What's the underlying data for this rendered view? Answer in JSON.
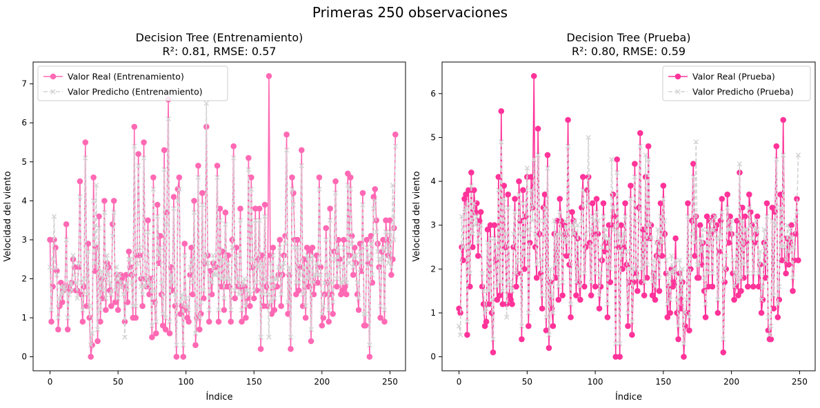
{
  "figure": {
    "suptitle": "Primeras 250 observaciones"
  },
  "chart_data": [
    {
      "type": "line",
      "title": "Decision Tree (Entrenamiento)",
      "subtitle": "R²: 0.81, RMSE: 0.57",
      "xlabel": "Índice",
      "ylabel": "Velocidad del viento",
      "xlim": [
        -12.45,
        261.45
      ],
      "ylim": [
        -0.36,
        7.56
      ],
      "xticks": [
        0,
        50,
        100,
        150,
        200,
        250
      ],
      "yticks": [
        0,
        1,
        2,
        3,
        4,
        5,
        6,
        7
      ],
      "legend": "top-left",
      "grid": false,
      "series": [
        {
          "name": "Valor Real (Entrenamiento)",
          "color": "#ff69b4",
          "style": "solid",
          "marker": "circle",
          "values": [
            3.0,
            0.9,
            1.8,
            3.0,
            2.8,
            2.2,
            0.7,
            1.3,
            1.9,
            1.4,
            1.7,
            1.8,
            3.4,
            0.7,
            1.8,
            1.7,
            1.9,
            2.5,
            2.3,
            1.7,
            1.7,
            2.3,
            4.5,
            1.6,
            0.9,
            1.8,
            5.5,
            1.3,
            2.9,
            1.0,
            0.0,
            0.3,
            4.6,
            2.2,
            2.8,
            0.4,
            3.6,
            0.9,
            2.0,
            1.5,
            4.0,
            1.2,
            2.4,
            2.3,
            1.7,
            1.3,
            3.4,
            4.0,
            1.4,
            2.1,
            1.2,
            1.9,
            2.1,
            2.0,
            1.8,
            0.9,
            2.1,
            1.4,
            2.7,
            2.3,
            2.1,
            1.0,
            5.9,
            1.0,
            2.6,
            5.2,
            2.6,
            2.0,
            1.3,
            5.5,
            2.0,
            1.8,
            3.5,
            1.6,
            2.0,
            0.5,
            4.6,
            1.4,
            0.6,
            3.9,
            2.4,
            3.1,
            1.6,
            0.8,
            5.3,
            0.7,
            3.7,
            6.6,
            0.6,
            2.3,
            1.7,
            4.1,
            1.3,
            0.0,
            4.3,
            4.6,
            1.1,
            1.3,
            0.0,
            2.9,
            1.2,
            1.0,
            0.9,
            2.1,
            2.8,
            1.6,
            4.0,
            0.3,
            1.0,
            4.9,
            0.7,
            1.1,
            4.2,
            1.5,
            2.4,
            5.9,
            2.6,
            0.9,
            2.2,
            1.6,
            2.4,
            2.3,
            2.3,
            4.9,
            0.9,
            3.8,
            1.8,
            2.7,
            1.2,
            3.7,
            1.8,
            2.6,
            1.8,
            0.9,
            3.0,
            5.4,
            1.5,
            2.8,
            1.8,
            1.8,
            3.8,
            0.9,
            1.7,
            1.8,
            1.0,
            1.5,
            5.1,
            1.3,
            4.6,
            2.3,
            1.5,
            3.8,
            1.7,
            2.5,
            3.8,
            0.2,
            2.6,
            1.3,
            3.9,
            1.8,
            1.3,
            7.2,
            2.6,
            1.1,
            2.8,
            1.2,
            1.8,
            1.8,
            2.1,
            3.0,
            1.3,
            2.1,
            2.6,
            3.1,
            5.7,
            1.1,
            2.1,
            0.2,
            4.6,
            4.2,
            3.0,
            1.6,
            3.0,
            1.7,
            2.3,
            5.3,
            1.3,
            2.5,
            1.0,
            2.8,
            1.8,
            2.7,
            0.4,
            2.8,
            1.6,
            1.9,
            2.6,
            1.9,
            4.6,
            2.3,
            0.8,
            1.0,
            1.6,
            3.3,
            1.9,
            0.9,
            3.8,
            1.6,
            1.1,
            2.7,
            4.5,
            1.8,
            3.0,
            2.5,
            1.6,
            1.7,
            3.0,
            1.8,
            1.6,
            4.7,
            2.6,
            4.6,
            3.1,
            2.1,
            2.8,
            2.4,
            1.6,
            1.2,
            2.9,
            2.2,
            4.2,
            0.8,
            0.8,
            3.0,
            2.4,
            0.0,
            3.1,
            1.9,
            4.1,
            4.3,
            3.5,
            2.9,
            2.3,
            1.0,
            2.7,
            3.0,
            0.9,
            3.5,
            3.0,
            2.6,
            3.5,
            2.1,
            2.5,
            3.3,
            5.7
          ]
        },
        {
          "name": "Valor Predicho (Entrenamiento)",
          "color": "#d3d3d3",
          "style": "dashed",
          "marker": "x",
          "values": [
            2.3,
            1.2,
            2.5,
            3.6,
            2.3,
            2.1,
            1.0,
            1.5,
            1.8,
            1.6,
            1.8,
            1.7,
            3.0,
            1.0,
            1.6,
            1.9,
            1.7,
            2.6,
            2.1,
            1.9,
            1.5,
            2.4,
            4.1,
            1.9,
            1.2,
            2.0,
            5.1,
            1.6,
            2.7,
            1.3,
            0.3,
            0.6,
            4.0,
            2.4,
            4.4,
            0.7,
            3.3,
            1.2,
            2.2,
            1.7,
            3.7,
            1.5,
            2.6,
            2.1,
            1.9,
            1.6,
            3.1,
            3.7,
            1.7,
            2.3,
            1.5,
            2.1,
            1.9,
            1.8,
            1.6,
            0.5,
            1.9,
            1.7,
            2.5,
            2.5,
            1.9,
            1.3,
            5.4,
            1.3,
            2.4,
            4.9,
            2.8,
            1.8,
            1.6,
            5.1,
            1.8,
            2.0,
            3.2,
            1.9,
            1.8,
            0.8,
            4.3,
            1.7,
            0.9,
            3.6,
            2.6,
            2.8,
            1.9,
            1.1,
            4.8,
            1.0,
            3.4,
            6.1,
            0.9,
            2.1,
            1.9,
            3.8,
            1.6,
            0.3,
            4.0,
            4.3,
            1.4,
            1.6,
            0.3,
            2.6,
            1.5,
            1.3,
            1.2,
            2.3,
            2.5,
            1.9,
            3.7,
            0.6,
            1.3,
            4.6,
            1.0,
            1.4,
            3.9,
            1.7,
            2.6,
            6.5,
            2.4,
            1.2,
            2.0,
            1.9,
            2.6,
            2.1,
            2.1,
            4.6,
            1.2,
            3.5,
            2.0,
            2.5,
            1.5,
            3.4,
            2.0,
            2.4,
            2.0,
            1.2,
            2.8,
            5.1,
            1.7,
            2.6,
            2.0,
            1.6,
            3.5,
            1.2,
            1.9,
            2.0,
            1.3,
            1.7,
            4.8,
            1.6,
            4.3,
            2.5,
            1.7,
            3.5,
            1.9,
            2.3,
            3.5,
            0.5,
            2.4,
            1.6,
            3.6,
            2.0,
            1.6,
            0.5,
            2.4,
            1.4,
            2.6,
            1.5,
            2.0,
            2.0,
            2.3,
            2.8,
            1.6,
            2.3,
            2.4,
            2.9,
            5.3,
            1.4,
            2.3,
            0.5,
            4.3,
            3.9,
            2.8,
            1.9,
            2.8,
            1.9,
            2.1,
            4.9,
            1.6,
            2.3,
            1.3,
            2.6,
            2.0,
            2.5,
            0.7,
            2.6,
            1.9,
            2.1,
            2.4,
            2.1,
            4.3,
            2.1,
            1.1,
            1.3,
            1.9,
            3.0,
            2.1,
            1.2,
            3.5,
            1.9,
            1.4,
            2.5,
            4.2,
            2.0,
            2.8,
            2.3,
            1.9,
            1.9,
            2.8,
            2.0,
            1.9,
            4.4,
            2.4,
            4.3,
            2.9,
            2.3,
            2.6,
            2.6,
            1.9,
            1.5,
            2.7,
            2.4,
            3.9,
            1.1,
            1.1,
            2.8,
            2.6,
            0.3,
            2.9,
            2.1,
            3.8,
            4.0,
            3.2,
            2.7,
            2.5,
            1.3,
            2.5,
            2.8,
            1.2,
            3.2,
            2.8,
            2.4,
            3.2,
            2.3,
            4.4,
            3.0,
            5.4
          ]
        }
      ]
    },
    {
      "type": "line",
      "title": "Decision Tree (Prueba)",
      "subtitle": "R²: 0.80, RMSE: 0.59",
      "xlabel": "Índice",
      "ylabel": "Velocidad del viento",
      "xlim": [
        -12.45,
        261.45
      ],
      "ylim": [
        -0.32,
        6.72
      ],
      "xticks": [
        0,
        50,
        100,
        150,
        200,
        250
      ],
      "yticks": [
        0,
        1,
        2,
        3,
        4,
        5,
        6
      ],
      "legend": "top-right",
      "grid": false,
      "series": [
        {
          "name": "Valor Real (Prueba)",
          "color": "#ff3399",
          "style": "solid",
          "marker": "circle",
          "values": [
            1.1,
            1.0,
            2.5,
            2.2,
            3.6,
            3.7,
            0.5,
            3.8,
            1.6,
            4.2,
            2.5,
            3.8,
            3.3,
            3.5,
            2.3,
            3.1,
            3.3,
            1.6,
            1.2,
            0.7,
            0.8,
            2.9,
            1.2,
            3.0,
            1.0,
            0.1,
            3.0,
            2.2,
            1.3,
            4.1,
            1.4,
            5.6,
            1.2,
            3.9,
            2.5,
            1.2,
            3.7,
            1.4,
            1.3,
            1.2,
            2.5,
            3.6,
            1.6,
            1.9,
            4.0,
            3.1,
            0.4,
            3.8,
            2.0,
            3.2,
            4.1,
            0.7,
            2.6,
            4.1,
            3.4,
            6.4,
            2.5,
            1.8,
            5.2,
            2.8,
            1.9,
            1.1,
            3.4,
            3.7,
            0.6,
            4.6,
            0.2,
            1.7,
            1.1,
            0.7,
            2.8,
            1.8,
            3.1,
            1.3,
            3.6,
            3.1,
            1.4,
            3.0,
            2.8,
            2.3,
            5.4,
            2.1,
            0.9,
            3.3,
            3.1,
            2.8,
            1.4,
            2.7,
            1.7,
            1.3,
            3.4,
            4.1,
            1.6,
            2.5,
            3.8,
            4.1,
            2.6,
            1.4,
            3.5,
            2.8,
            1.6,
            3.6,
            2.8,
            1.1,
            1.6,
            2.2,
            3.5,
            2.4,
            2.6,
            0.9,
            3.0,
            1.7,
            3.0,
            3.7,
            3.2,
            0.0,
            4.5,
            2.5,
            0.0,
            3.0,
            2.0,
            2.5,
            3.5,
            2.1,
            0.7,
            1.7,
            3.9,
            0.5,
            1.7,
            4.4,
            1.9,
            1.5,
            3.4,
            5.1,
            1.7,
            2.9,
            1.4,
            4.1,
            1.8,
            4.8,
            2.7,
            3.0,
            1.4,
            1.9,
            1.3,
            2.3,
            2.6,
            1.5,
            3.5,
            2.3,
            3.9,
            2.8,
            1.9,
            0.9,
            1.6,
            1.0,
            2.0,
            1.6,
            1.7,
            2.7,
            1.0,
            0.4,
            1.9,
            1.1,
            1.7,
            0.0,
            0.7,
            1.0,
            3.5,
            0.6,
            2.0,
            3.1,
            4.4,
            2.3,
            3.2,
            1.8,
            1.8,
            3.0,
            2.1,
            2.6,
            1.5,
            0.9,
            3.2,
            1.6,
            3.1,
            2.8,
            1.6,
            3.2,
            2.9,
            3.0,
            1.0,
            2.4,
            3.1,
            3.6,
            0.1,
            1.7,
            2.0,
            3.7,
            2.6,
            3.2,
            2.8,
            1.9,
            1.3,
            1.6,
            3.1,
            1.4,
            4.2,
            1.5,
            3.4,
            1.8,
            3.2,
            2.6,
            1.6,
            3.7,
            3.3,
            3.0,
            1.6,
            2.6,
            2.8,
            3.2,
            1.6,
            2.1,
            1.0,
            1.3,
            2.6,
            1.8,
            3.5,
            0.6,
            0.4,
            0.4,
            3.4,
            1.1,
            3.3,
            4.8,
            0.9,
            1.3,
            3.7,
            2.2,
            5.4,
            2.2,
            1.9,
            2.7,
            2.1,
            2.6,
            3.0,
            1.5,
            2.2,
            2.8,
            3.6,
            2.2
          ]
        },
        {
          "name": "Valor Predicho (Prueba)",
          "color": "#d3d3d3",
          "style": "dashed",
          "marker": "x",
          "values": [
            0.7,
            0.5,
            3.2,
            2.5,
            3.3,
            3.4,
            0.8,
            3.5,
            1.9,
            3.9,
            2.8,
            3.5,
            3.0,
            3.2,
            2.6,
            2.8,
            3.0,
            1.9,
            1.5,
            1.0,
            1.1,
            2.6,
            1.5,
            2.7,
            1.3,
            0.4,
            2.7,
            2.5,
            1.6,
            3.8,
            1.7,
            4.9,
            1.5,
            3.6,
            2.8,
            0.9,
            3.4,
            1.7,
            1.6,
            1.5,
            2.8,
            3.3,
            1.9,
            2.2,
            3.7,
            2.8,
            0.7,
            3.5,
            2.3,
            2.9,
            4.3,
            1.0,
            2.9,
            3.8,
            3.1,
            4.5,
            2.8,
            2.1,
            4.6,
            3.1,
            2.2,
            1.4,
            3.1,
            3.4,
            0.9,
            4.3,
            0.5,
            2.0,
            1.4,
            1.0,
            3.1,
            2.1,
            2.8,
            1.6,
            3.3,
            2.8,
            1.7,
            2.7,
            3.1,
            2.6,
            4.8,
            2.4,
            1.2,
            3.0,
            2.8,
            3.1,
            1.7,
            3.0,
            2.0,
            1.6,
            3.1,
            3.8,
            1.9,
            2.8,
            3.5,
            5.0,
            2.9,
            1.7,
            3.2,
            3.1,
            1.9,
            3.3,
            3.1,
            1.4,
            1.9,
            2.5,
            3.2,
            2.7,
            2.9,
            1.2,
            2.7,
            2.0,
            4.5,
            3.4,
            2.9,
            0.3,
            4.2,
            2.8,
            0.3,
            2.7,
            2.3,
            2.8,
            3.2,
            2.4,
            1.0,
            2.0,
            3.6,
            0.8,
            2.0,
            4.1,
            2.2,
            1.8,
            3.1,
            4.8,
            2.0,
            2.6,
            1.7,
            4.6,
            2.1,
            4.5,
            3.0,
            2.7,
            1.7,
            2.2,
            1.6,
            2.6,
            2.9,
            1.8,
            3.2,
            2.6,
            3.6,
            3.1,
            2.2,
            1.2,
            1.9,
            1.3,
            2.3,
            1.9,
            2.0,
            2.2,
            1.3,
            0.7,
            2.2,
            1.4,
            2.0,
            0.3,
            1.0,
            1.3,
            3.2,
            0.9,
            2.3,
            2.8,
            4.1,
            2.6,
            4.9,
            2.1,
            2.1,
            2.7,
            2.4,
            2.9,
            1.8,
            1.2,
            2.9,
            1.9,
            2.8,
            3.1,
            1.9,
            2.9,
            3.2,
            2.7,
            1.3,
            2.7,
            2.8,
            3.3,
            0.4,
            2.0,
            2.3,
            3.4,
            2.9,
            2.9,
            3.1,
            2.2,
            1.6,
            1.9,
            2.8,
            1.7,
            4.4,
            1.8,
            3.1,
            2.1,
            2.9,
            2.9,
            1.9,
            3.4,
            3.0,
            2.7,
            1.9,
            2.9,
            3.1,
            2.9,
            1.9,
            2.4,
            1.3,
            1.6,
            2.9,
            2.1,
            3.2,
            0.9,
            0.5,
            0.7,
            3.1,
            1.4,
            3.0,
            4.5,
            1.2,
            1.6,
            3.4,
            2.5,
            4.6,
            2.5,
            2.2,
            3.0,
            2.4,
            2.9,
            2.7,
            1.8,
            2.5,
            3.1,
            3.3,
            4.6
          ]
        }
      ]
    }
  ]
}
